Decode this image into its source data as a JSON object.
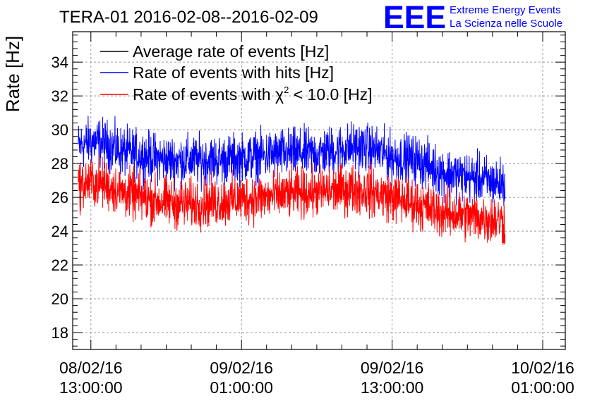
{
  "chart_data": {
    "type": "line",
    "title": "TERA-01 2016-02-08--2016-02-09",
    "ylabel": "Rate [Hz]",
    "xlabel": "",
    "ylim": [
      17,
      35.8
    ],
    "yticks": [
      18,
      20,
      22,
      24,
      26,
      28,
      30,
      32,
      34
    ],
    "xrange_hours": [
      -1.45,
      37.8
    ],
    "xticks": [
      {
        "hour": 0,
        "date": "08/02/16",
        "time": "13:00:00"
      },
      {
        "hour": 12,
        "date": "09/02/16",
        "time": "01:00:00"
      },
      {
        "hour": 24,
        "date": "09/02/16",
        "time": "13:00:00"
      },
      {
        "hour": 36,
        "date": "10/02/16",
        "time": "01:00:00"
      }
    ],
    "grid": true,
    "legend_position": "top-left",
    "data_hour_range": [
      -1.0,
      33.0
    ],
    "series": [
      {
        "name": "Average rate of events [Hz]",
        "color": "#000000",
        "legend_only": true,
        "hours": [],
        "values": []
      },
      {
        "name": "Rate of events with hits [Hz]",
        "color": "#0000ff",
        "noise_amplitude": 1.3,
        "hours": [
          -1.0,
          0.0,
          1.0,
          2.5,
          4.0,
          6.0,
          8.0,
          10.0,
          12.0,
          14.0,
          16.0,
          18.0,
          19.5,
          21.0,
          22.5,
          24.0,
          26.0,
          28.0,
          30.0,
          31.0,
          32.0,
          33.0
        ],
        "values": [
          29.0,
          29.3,
          29.2,
          28.7,
          28.5,
          28.2,
          28.2,
          28.2,
          28.3,
          28.5,
          28.6,
          28.6,
          28.8,
          29.0,
          28.8,
          28.4,
          28.2,
          27.5,
          27.2,
          27.1,
          26.9,
          26.8
        ]
      },
      {
        "name": "Rate of events with",
        "legend_suffix": " < 10.0 [Hz]",
        "color": "#ff0000",
        "noise_amplitude": 1.3,
        "hours": [
          -1.0,
          0.0,
          1.0,
          2.5,
          4.0,
          6.0,
          8.0,
          10.0,
          12.0,
          14.0,
          16.0,
          18.0,
          19.5,
          21.0,
          22.5,
          24.0,
          26.0,
          28.0,
          30.0,
          31.0,
          32.0,
          33.0
        ],
        "values": [
          26.7,
          26.9,
          26.8,
          26.3,
          26.0,
          25.7,
          25.6,
          25.7,
          25.9,
          26.0,
          26.2,
          26.3,
          26.4,
          26.5,
          26.3,
          26.0,
          25.6,
          25.1,
          24.9,
          24.8,
          24.7,
          24.6
        ]
      }
    ]
  },
  "logo": {
    "mark": "EEE",
    "line1": "Extreme Energy Events",
    "line2": "La Scienza nelle Scuole",
    "color": "#0000ff"
  },
  "chi_symbol": "χ",
  "chi_exponent": "2"
}
